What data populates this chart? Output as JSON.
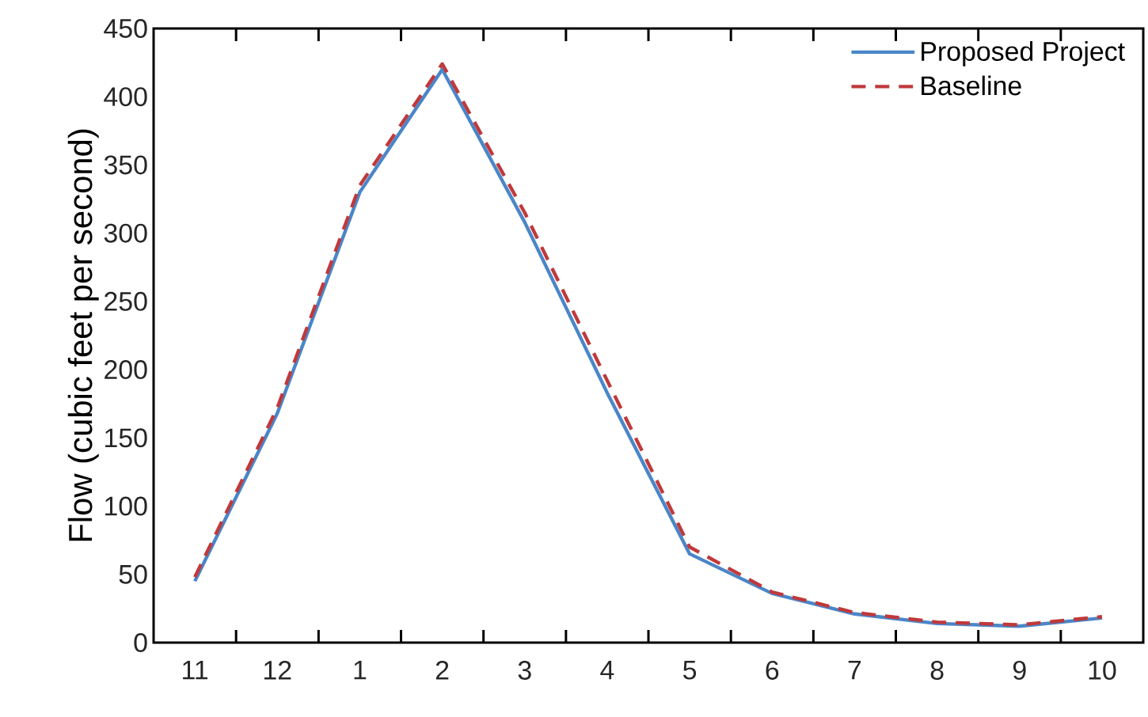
{
  "chart_data": {
    "type": "line",
    "ylabel": "Flow (cubic feet per second)",
    "categories": [
      "11",
      "12",
      "1",
      "2",
      "3",
      "4",
      "5",
      "6",
      "7",
      "8",
      "9",
      "10"
    ],
    "series": [
      {
        "name": "Proposed Project",
        "color": "#4a86c8",
        "line_style": "solid",
        "values": [
          45,
          168,
          330,
          420,
          308,
          183,
          65,
          36,
          21,
          14,
          12,
          18
        ]
      },
      {
        "name": "Baseline",
        "color": "#c0393b",
        "line_style": "dashed",
        "values": [
          48,
          172,
          335,
          424,
          315,
          192,
          70,
          37,
          22,
          15,
          13,
          19
        ]
      }
    ],
    "ylim": [
      0,
      450
    ],
    "yticks": [
      0,
      50,
      100,
      150,
      200,
      250,
      300,
      350,
      400,
      450
    ],
    "grid": false,
    "legend": "top right"
  }
}
